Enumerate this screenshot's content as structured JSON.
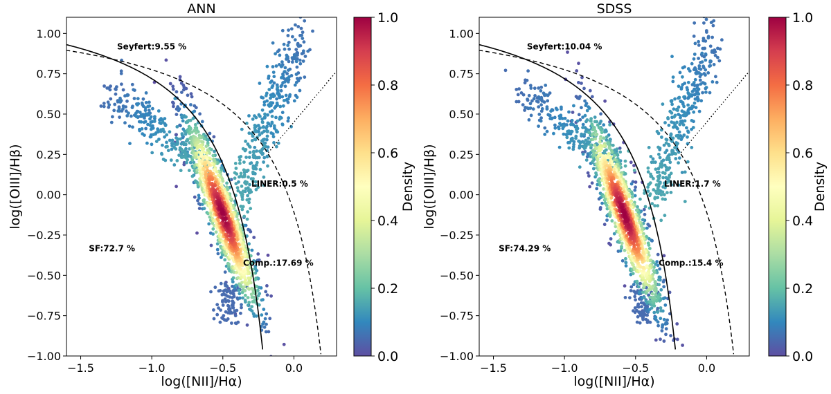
{
  "chart_data": [
    {
      "type": "scatter",
      "title": "ANN",
      "xlabel": "log([NII]/Hα)",
      "ylabel": "log([OIII]/Hβ)",
      "xlim": [
        -1.6,
        0.3
      ],
      "ylim": [
        -1.0,
        1.1
      ],
      "xticks": [
        -1.5,
        -1.0,
        -0.5,
        0.0
      ],
      "xtick_labels": [
        "−1.5",
        "−1.0",
        "−0.5",
        "0.0"
      ],
      "yticks": [
        -1.0,
        -0.75,
        -0.5,
        -0.25,
        0.0,
        0.25,
        0.5,
        0.75,
        1.0
      ],
      "ytick_labels": [
        "−1.00",
        "−0.75",
        "−0.50",
        "−0.25",
        "0.00",
        "0.25",
        "0.50",
        "0.75",
        "1.00"
      ],
      "colorbar": {
        "label": "Density",
        "range": [
          0.0,
          1.0
        ],
        "ticks": [
          "0.0",
          "0.2",
          "0.4",
          "0.6",
          "0.8",
          "1.0"
        ],
        "colormap": "Spectral_r"
      },
      "density_peak": {
        "x": -0.5,
        "y": -0.12
      },
      "curves": [
        "Kauffmann (solid)",
        "Kewley (dashed)",
        "Seyfert/LINER (dotted)"
      ],
      "annotations": [
        {
          "text": "Seyfert:9.55 %",
          "x": -1.0,
          "y": 0.9
        },
        {
          "text": "LINER:0.5 %",
          "x": -0.1,
          "y": 0.05
        },
        {
          "text": "SF:72.7 %",
          "x": -1.28,
          "y": -0.35
        },
        {
          "text": "Comp.:17.69 %",
          "x": -0.11,
          "y": -0.44
        }
      ]
    },
    {
      "type": "scatter",
      "title": "SDSS",
      "xlabel": "log([NII]/Hα)",
      "ylabel": "log([OIII]/Hβ)",
      "xlim": [
        -1.6,
        0.3
      ],
      "ylim": [
        -1.0,
        1.1
      ],
      "xticks": [
        -1.5,
        -1.0,
        -0.5,
        0.0
      ],
      "xtick_labels": [
        "−1.5",
        "−1.0",
        "−0.5",
        "0.0"
      ],
      "yticks": [
        -1.0,
        -0.75,
        -0.5,
        -0.25,
        0.0,
        0.25,
        0.5,
        0.75,
        1.0
      ],
      "ytick_labels": [
        "−1.00",
        "−0.75",
        "−0.50",
        "−0.25",
        "0.00",
        "0.25",
        "0.50",
        "0.75",
        "1.00"
      ],
      "colorbar": {
        "label": "Density",
        "range": [
          0.0,
          1.0
        ],
        "ticks": [
          "0.0",
          "0.2",
          "0.4",
          "0.6",
          "0.8",
          "1.0"
        ],
        "colormap": "Spectral_r"
      },
      "density_peak": {
        "x": -0.58,
        "y": -0.12
      },
      "curves": [
        "Kauffmann (solid)",
        "Kewley (dashed)",
        "Seyfert/LINER (dotted)"
      ],
      "annotations": [
        {
          "text": "Seyfert:10.04 %",
          "x": -1.0,
          "y": 0.9
        },
        {
          "text": "LINER:1.7 %",
          "x": -0.1,
          "y": 0.05
        },
        {
          "text": "SF:74.29 %",
          "x": -1.28,
          "y": -0.35
        },
        {
          "text": "Comp.:15.4 %",
          "x": -0.11,
          "y": -0.44
        }
      ]
    }
  ]
}
